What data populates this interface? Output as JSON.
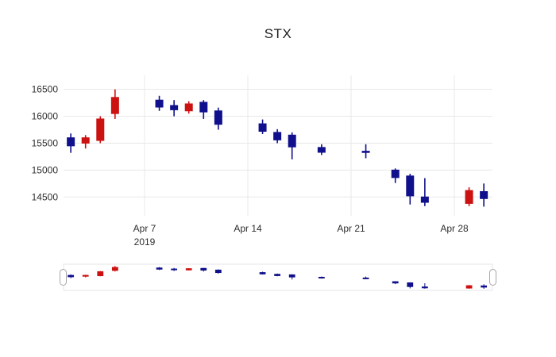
{
  "chart_data": {
    "type": "candlestick",
    "title": "STX",
    "legend": "off",
    "grid": "on",
    "rangeslider": true,
    "y_axis": {
      "ticks": [
        16500,
        16000,
        15500,
        15000,
        14500
      ],
      "range": [
        14150,
        16760
      ]
    },
    "x_axis": {
      "start_date": "2019-04-01",
      "labels": [
        {
          "text": "Apr 7",
          "subtext": "2019",
          "date": "2019-04-07"
        },
        {
          "text": "Apr 14",
          "subtext": "",
          "date": "2019-04-14"
        },
        {
          "text": "Apr 21",
          "subtext": "",
          "date": "2019-04-21"
        },
        {
          "text": "Apr 28",
          "subtext": "",
          "date": "2019-04-28"
        }
      ]
    },
    "colors": {
      "increasing": "#cc1111",
      "decreasing": "#10108c",
      "grid": "#e8e8e8",
      "tick_text": "#2f2f2f",
      "slider_border": "#e6e6e6",
      "slider_handle_fill": "#ffffff",
      "slider_handle_stroke": "#a6a6a6"
    },
    "ohlc": [
      {
        "date": "2019-04-02",
        "open": 15600,
        "high": 15680,
        "low": 15320,
        "close": 15450
      },
      {
        "date": "2019-04-03",
        "open": 15500,
        "high": 15650,
        "low": 15400,
        "close": 15600
      },
      {
        "date": "2019-04-04",
        "open": 15550,
        "high": 16000,
        "low": 15500,
        "close": 15950
      },
      {
        "date": "2019-04-05",
        "open": 16050,
        "high": 16500,
        "low": 15950,
        "close": 16350
      },
      {
        "date": "2019-04-08",
        "open": 16300,
        "high": 16380,
        "low": 16100,
        "close": 16170
      },
      {
        "date": "2019-04-09",
        "open": 16200,
        "high": 16300,
        "low": 16000,
        "close": 16120
      },
      {
        "date": "2019-04-10",
        "open": 16100,
        "high": 16280,
        "low": 16050,
        "close": 16230
      },
      {
        "date": "2019-04-11",
        "open": 16260,
        "high": 16300,
        "low": 15950,
        "close": 16080
      },
      {
        "date": "2019-04-12",
        "open": 16100,
        "high": 16160,
        "low": 15750,
        "close": 15850
      },
      {
        "date": "2019-04-15",
        "open": 15860,
        "high": 15940,
        "low": 15670,
        "close": 15720
      },
      {
        "date": "2019-04-16",
        "open": 15700,
        "high": 15760,
        "low": 15500,
        "close": 15560
      },
      {
        "date": "2019-04-17",
        "open": 15650,
        "high": 15700,
        "low": 15200,
        "close": 15430
      },
      {
        "date": "2019-04-19",
        "open": 15420,
        "high": 15480,
        "low": 15280,
        "close": 15330
      },
      {
        "date": "2019-04-22",
        "open": 15350,
        "high": 15480,
        "low": 15220,
        "close": 15330
      },
      {
        "date": "2019-04-24",
        "open": 15000,
        "high": 15030,
        "low": 14760,
        "close": 14860
      },
      {
        "date": "2019-04-25",
        "open": 14890,
        "high": 14930,
        "low": 14360,
        "close": 14520
      },
      {
        "date": "2019-04-26",
        "open": 14500,
        "high": 14850,
        "low": 14330,
        "close": 14400
      },
      {
        "date": "2019-04-29",
        "open": 14380,
        "high": 14680,
        "low": 14330,
        "close": 14620
      },
      {
        "date": "2019-04-30",
        "open": 14600,
        "high": 14750,
        "low": 14320,
        "close": 14470
      }
    ]
  }
}
